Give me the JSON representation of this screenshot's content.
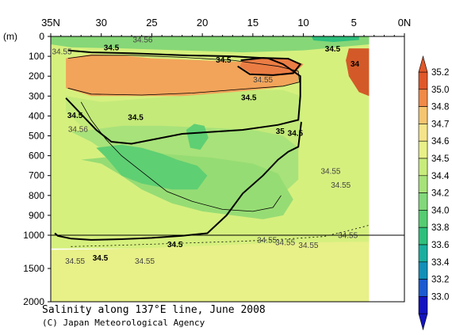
{
  "chart_data": {
    "type": "heatmap",
    "title": "Salinity along 137°E line, June 2008",
    "credit": "(C) Japan Meteorological Agency",
    "x_axis": {
      "direction": "descending",
      "range": [
        35,
        0
      ],
      "ticks": [
        {
          "value": 35,
          "label": "35N"
        },
        {
          "value": 30,
          "label": "30"
        },
        {
          "value": 25,
          "label": "25"
        },
        {
          "value": 20,
          "label": "20"
        },
        {
          "value": 15,
          "label": "15"
        },
        {
          "value": 10,
          "label": "10"
        },
        {
          "value": 5,
          "label": "5"
        },
        {
          "value": 0,
          "label": "0N"
        }
      ]
    },
    "y_axis": {
      "unit_label": "(m)",
      "range": [
        0,
        2000
      ],
      "scale": "linear 0-1000 m, compressed 1000-2000 m",
      "ticks": [
        {
          "value": 0,
          "label": "0"
        },
        {
          "value": 100,
          "label": "100"
        },
        {
          "value": 200,
          "label": "200"
        },
        {
          "value": 300,
          "label": "300"
        },
        {
          "value": 400,
          "label": "400"
        },
        {
          "value": 500,
          "label": "500"
        },
        {
          "value": 600,
          "label": "600"
        },
        {
          "value": 700,
          "label": "700"
        },
        {
          "value": 800,
          "label": "800"
        },
        {
          "value": 900,
          "label": "900"
        },
        {
          "value": 1000,
          "label": "1000"
        },
        {
          "value": 1500,
          "label": "1500"
        },
        {
          "value": 2000,
          "label": "2000"
        }
      ]
    },
    "colorbar": {
      "levels": [
        {
          "value": 35.2,
          "label": "35.2",
          "color": "#e0582a"
        },
        {
          "value": 35.0,
          "label": "35.0",
          "color": "#f08a48"
        },
        {
          "value": 34.8,
          "label": "34.8",
          "color": "#f5c570"
        },
        {
          "value": 34.7,
          "label": "34.7",
          "color": "#f5e48a"
        },
        {
          "value": 34.6,
          "label": "34.6",
          "color": "#e8f088"
        },
        {
          "value": 34.5,
          "label": "34.5",
          "color": "#c8ec7c"
        },
        {
          "value": 34.4,
          "label": "34.4",
          "color": "#a8e27a"
        },
        {
          "value": 34.2,
          "label": "34.2",
          "color": "#82d87a"
        },
        {
          "value": 34.0,
          "label": "34.0",
          "color": "#55cc72"
        },
        {
          "value": 33.8,
          "label": "33.8",
          "color": "#2ebf7c"
        },
        {
          "value": 33.6,
          "label": "33.6",
          "color": "#1aae9e"
        },
        {
          "value": 33.4,
          "label": "33.4",
          "color": "#1290b8"
        },
        {
          "value": 33.2,
          "label": "33.2",
          "color": "#1b5ad0"
        },
        {
          "value": 33.0,
          "label": "33.0",
          "color": "#1414c0"
        }
      ]
    },
    "regions": [
      {
        "name": "base-34.6",
        "color": "#d6f07e",
        "points": [
          [
            35,
            0
          ],
          [
            3.5,
            0
          ],
          [
            3.5,
            1200
          ],
          [
            35,
            1200
          ]
        ]
      },
      {
        "name": "deep-34.55",
        "color": "#e8f088",
        "points": [
          [
            35,
            1220
          ],
          [
            30,
            1210
          ],
          [
            25,
            1190
          ],
          [
            20,
            1160
          ],
          [
            15,
            1130
          ],
          [
            10,
            1110
          ],
          [
            5,
            1100
          ],
          [
            3.5,
            1100
          ],
          [
            3.5,
            2000
          ],
          [
            35,
            2000
          ]
        ]
      },
      {
        "name": "band-34.5",
        "color": "#c4ea7a",
        "points": [
          [
            33.5,
            380
          ],
          [
            32,
            450
          ],
          [
            30,
            500
          ],
          [
            28,
            530
          ],
          [
            25,
            560
          ],
          [
            21,
            600
          ],
          [
            18,
            640
          ],
          [
            14,
            660
          ],
          [
            11,
            640
          ],
          [
            10.3,
            450
          ],
          [
            10.2,
            300
          ],
          [
            12,
            270
          ],
          [
            16,
            270
          ],
          [
            20,
            290
          ],
          [
            25,
            310
          ],
          [
            30,
            330
          ],
          [
            33.5,
            300
          ]
        ]
      },
      {
        "name": "band-34.4",
        "color": "#a8e27a",
        "points": [
          [
            33,
            480
          ],
          [
            31,
            530
          ],
          [
            29,
            600
          ],
          [
            27,
            660
          ],
          [
            24,
            720
          ],
          [
            21,
            760
          ],
          [
            18,
            790
          ],
          [
            15,
            800
          ],
          [
            12,
            790
          ],
          [
            10.5,
            720
          ],
          [
            10.5,
            560
          ],
          [
            12,
            500
          ],
          [
            15,
            470
          ],
          [
            19,
            460
          ],
          [
            24,
            450
          ],
          [
            28,
            450
          ],
          [
            31,
            470
          ]
        ]
      },
      {
        "name": "band-34.3",
        "color": "#96dc74",
        "points": [
          [
            32,
            620
          ],
          [
            30,
            640
          ],
          [
            28,
            700
          ],
          [
            26,
            770
          ],
          [
            23,
            840
          ],
          [
            20,
            880
          ],
          [
            17,
            900
          ],
          [
            14,
            920
          ],
          [
            12,
            900
          ],
          [
            11,
            820
          ],
          [
            12.5,
            690
          ],
          [
            15,
            640
          ],
          [
            19,
            610
          ],
          [
            24,
            590
          ],
          [
            28,
            600
          ]
        ]
      },
      {
        "name": "core-34.2",
        "color": "#5fcf73",
        "points": [
          [
            30.5,
            560
          ],
          [
            29.5,
            610
          ],
          [
            28,
            700
          ],
          [
            26,
            740
          ],
          [
            23,
            770
          ],
          [
            20.5,
            770
          ],
          [
            19.5,
            700
          ],
          [
            20.5,
            650
          ],
          [
            22.5,
            620
          ],
          [
            24,
            590
          ],
          [
            26,
            560
          ],
          [
            28,
            545
          ]
        ]
      },
      {
        "name": "lens-34.2",
        "color": "#5fcf73",
        "points": [
          [
            21.6,
            470
          ],
          [
            20.8,
            440
          ],
          [
            19.8,
            450
          ],
          [
            19.4,
            510
          ],
          [
            20.2,
            570
          ],
          [
            21.2,
            560
          ]
        ]
      },
      {
        "name": "orange-34.9",
        "color": "#f2a45a",
        "points": [
          [
            33.5,
            110
          ],
          [
            31,
            90
          ],
          [
            28,
            95
          ],
          [
            25,
            110
          ],
          [
            20,
            120
          ],
          [
            15,
            130
          ],
          [
            12,
            150
          ],
          [
            10.5,
            170
          ],
          [
            10.5,
            230
          ],
          [
            13,
            260
          ],
          [
            17,
            280
          ],
          [
            22,
            300
          ],
          [
            27,
            300
          ],
          [
            31,
            300
          ],
          [
            33.5,
            260
          ]
        ]
      },
      {
        "name": "core-35",
        "color": "#ea7d44",
        "points": [
          [
            16,
            120
          ],
          [
            14,
            105
          ],
          [
            11.5,
            110
          ],
          [
            10,
            140
          ],
          [
            11,
            190
          ],
          [
            13,
            200
          ],
          [
            15,
            190
          ],
          [
            16.3,
            150
          ]
        ]
      },
      {
        "name": "surface-34.3",
        "color": "#86d777",
        "points": [
          [
            35,
            0
          ],
          [
            3.5,
            0
          ],
          [
            3.5,
            40
          ],
          [
            10,
            70
          ],
          [
            16,
            80
          ],
          [
            22,
            70
          ],
          [
            28,
            60
          ],
          [
            33,
            55
          ],
          [
            35,
            40
          ]
        ]
      },
      {
        "name": "surface-teal",
        "color": "#2ebf7c",
        "points": [
          [
            9.2,
            0
          ],
          [
            4.5,
            0
          ],
          [
            4.5,
            18
          ],
          [
            7,
            28
          ],
          [
            9,
            20
          ]
        ]
      },
      {
        "name": "equator-high",
        "color": "#d35a28",
        "points": [
          [
            5.5,
            60
          ],
          [
            3.5,
            60
          ],
          [
            3.5,
            300
          ],
          [
            4.5,
            280
          ],
          [
            5.5,
            200
          ],
          [
            5.8,
            120
          ]
        ]
      }
    ],
    "contours": [
      {
        "level": 34.5,
        "bold": true,
        "points": [
          [
            33.5,
            310
          ],
          [
            32,
            390
          ],
          [
            30.5,
            470
          ],
          [
            29,
            530
          ],
          [
            27,
            540
          ],
          [
            25,
            520
          ],
          [
            22,
            490
          ],
          [
            19,
            480
          ],
          [
            16,
            470
          ],
          [
            12.5,
            445
          ],
          [
            10.5,
            420
          ],
          [
            10.3,
            300
          ],
          [
            10.3,
            200
          ],
          [
            12,
            140
          ],
          [
            13.5,
            110
          ],
          [
            17,
            100
          ],
          [
            22,
            95
          ],
          [
            27,
            85
          ],
          [
            31,
            80
          ],
          [
            33.3,
            70
          ]
        ]
      },
      {
        "level": 34.5,
        "bold": true,
        "points": [
          [
            34.6,
            990
          ],
          [
            34.3,
            1010
          ],
          [
            33,
            1050
          ],
          [
            31,
            1070
          ],
          [
            28,
            1060
          ],
          [
            25,
            1040
          ],
          [
            22,
            1010
          ],
          [
            19.5,
            990
          ],
          [
            17.6,
            900
          ],
          [
            16,
            790
          ],
          [
            14,
            700
          ],
          [
            12.5,
            620
          ],
          [
            11.5,
            580
          ],
          [
            10.5,
            555
          ],
          [
            10.2,
            430
          ]
        ]
      },
      {
        "level": 35.0,
        "bold": true,
        "points": [
          [
            16.2,
            120
          ],
          [
            14,
            108
          ],
          [
            11.5,
            112
          ],
          [
            10.3,
            140
          ],
          [
            11,
            185
          ],
          [
            13,
            195
          ],
          [
            15.3,
            190
          ],
          [
            16.5,
            150
          ]
        ]
      },
      {
        "level": 34.8,
        "bold": false,
        "points": [
          [
            33.3,
            110
          ],
          [
            31,
            95
          ],
          [
            27,
            95
          ],
          [
            22,
            105
          ],
          [
            17,
            120
          ],
          [
            12.5,
            150
          ],
          [
            10.5,
            175
          ],
          [
            10.4,
            230
          ],
          [
            12,
            250
          ],
          [
            16,
            265
          ],
          [
            21,
            285
          ],
          [
            26,
            295
          ],
          [
            31,
            290
          ],
          [
            33.3,
            260
          ]
        ]
      },
      {
        "level": 34.3,
        "bold": false,
        "points": [
          [
            32,
            330
          ],
          [
            31,
            420
          ],
          [
            29.5,
            520
          ],
          [
            28,
            600
          ],
          [
            26,
            680
          ],
          [
            23.5,
            780
          ],
          [
            21,
            830
          ],
          [
            18,
            870
          ],
          [
            15,
            880
          ],
          [
            13,
            860
          ],
          [
            12.2,
            800
          ]
        ]
      },
      {
        "level": 34.55,
        "bold": false,
        "dashed": true,
        "points": [
          [
            33,
            1170
          ],
          [
            28,
            1150
          ],
          [
            24,
            1130
          ],
          [
            20,
            1110
          ],
          [
            16,
            1090
          ],
          [
            12,
            1060
          ],
          [
            8,
            1020
          ],
          [
            5,
            970
          ],
          [
            3.5,
            950
          ]
        ]
      }
    ],
    "contour_labels": [
      {
        "text": "34.5",
        "x": 29.0,
        "y": 60
      },
      {
        "text": "34.56",
        "x": 25.9,
        "y": 20
      },
      {
        "text": "34.5",
        "x": 17.9,
        "y": 120
      },
      {
        "text": "34.55",
        "x": 14.0,
        "y": 220
      },
      {
        "text": "34.5",
        "x": 7.1,
        "y": 65
      },
      {
        "text": "34",
        "x": 4.9,
        "y": 140
      },
      {
        "text": "35",
        "x": 12.3,
        "y": 480
      },
      {
        "text": "34.5",
        "x": 15.4,
        "y": 310
      },
      {
        "text": "34.55",
        "x": 7.3,
        "y": 680
      },
      {
        "text": "34.5",
        "x": 26.6,
        "y": 410
      },
      {
        "text": "34.55",
        "x": 33.9,
        "y": 80
      },
      {
        "text": "34.5",
        "x": 32.6,
        "y": 400
      },
      {
        "text": "34.56",
        "x": 32.3,
        "y": 470
      },
      {
        "text": "34.55",
        "x": 6.3,
        "y": 750
      },
      {
        "text": "34.5",
        "x": 10.8,
        "y": 490
      },
      {
        "text": "34.55",
        "x": 5.6,
        "y": 1010
      },
      {
        "text": "34.55",
        "x": 13.6,
        "y": 1080
      },
      {
        "text": "34.55",
        "x": 11.8,
        "y": 1120
      },
      {
        "text": "34.55",
        "x": 9.5,
        "y": 1160
      },
      {
        "text": "34.5",
        "x": 22.7,
        "y": 1150
      },
      {
        "text": "34.5",
        "x": 30.1,
        "y": 1350
      },
      {
        "text": "34.55",
        "x": 32.6,
        "y": 1400
      },
      {
        "text": "34.55",
        "x": 25.7,
        "y": 1400
      }
    ]
  }
}
